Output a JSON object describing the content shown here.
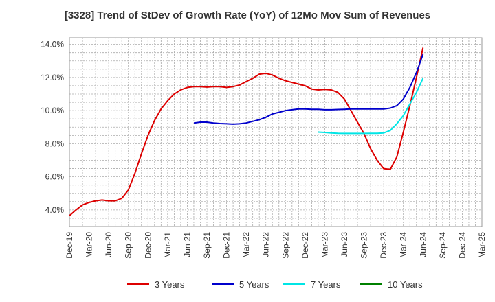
{
  "chart_data": {
    "type": "line",
    "title": "[3328]  Trend of StDev of Growth Rate (YoY) of 12Mo Mov Sum of Revenues",
    "xlabel": "",
    "ylabel": "",
    "x_tick_labels": [
      "Dec-19",
      "Mar-20",
      "Jun-20",
      "Sep-20",
      "Dec-20",
      "Mar-21",
      "Jun-21",
      "Sep-21",
      "Dec-21",
      "Mar-22",
      "Jun-22",
      "Sep-22",
      "Dec-22",
      "Mar-23",
      "Jun-23",
      "Sep-23",
      "Dec-23",
      "Mar-24",
      "Jun-24",
      "Sep-24",
      "Dec-24",
      "Mar-25"
    ],
    "y_tick_labels": [
      "4.0%",
      "6.0%",
      "8.0%",
      "10.0%",
      "12.0%",
      "14.0%"
    ],
    "y_ticks": [
      4,
      6,
      8,
      10,
      12,
      14
    ],
    "ylim": [
      3.0,
      14.4
    ],
    "x_range_months": [
      0,
      63
    ],
    "grid": true,
    "legend_position": "bottom",
    "series": [
      {
        "name": "3 Years",
        "color": "#dd0000",
        "points": [
          [
            0,
            3.65
          ],
          [
            1,
            4.0
          ],
          [
            2,
            4.3
          ],
          [
            3,
            4.45
          ],
          [
            4,
            4.55
          ],
          [
            5,
            4.6
          ],
          [
            6,
            4.55
          ],
          [
            7,
            4.55
          ],
          [
            8,
            4.7
          ],
          [
            9,
            5.2
          ],
          [
            10,
            6.2
          ],
          [
            11,
            7.4
          ],
          [
            12,
            8.5
          ],
          [
            13,
            9.4
          ],
          [
            14,
            10.1
          ],
          [
            15,
            10.6
          ],
          [
            16,
            11.0
          ],
          [
            17,
            11.25
          ],
          [
            18,
            11.4
          ],
          [
            19,
            11.45
          ],
          [
            20,
            11.45
          ],
          [
            21,
            11.42
          ],
          [
            22,
            11.45
          ],
          [
            23,
            11.45
          ],
          [
            24,
            11.4
          ],
          [
            25,
            11.45
          ],
          [
            26,
            11.55
          ],
          [
            27,
            11.75
          ],
          [
            28,
            11.95
          ],
          [
            29,
            12.2
          ],
          [
            30,
            12.25
          ],
          [
            31,
            12.15
          ],
          [
            32,
            11.95
          ],
          [
            33,
            11.8
          ],
          [
            34,
            11.7
          ],
          [
            35,
            11.6
          ],
          [
            36,
            11.5
          ],
          [
            37,
            11.3
          ],
          [
            38,
            11.25
          ],
          [
            39,
            11.28
          ],
          [
            40,
            11.25
          ],
          [
            41,
            11.1
          ],
          [
            42,
            10.7
          ],
          [
            43,
            10.0
          ],
          [
            44,
            9.3
          ],
          [
            45,
            8.6
          ],
          [
            46,
            7.7
          ],
          [
            47,
            7.0
          ],
          [
            48,
            6.5
          ],
          [
            49,
            6.45
          ],
          [
            50,
            7.2
          ],
          [
            51,
            8.7
          ],
          [
            52,
            10.3
          ],
          [
            53,
            12.0
          ],
          [
            54,
            13.8
          ]
        ]
      },
      {
        "name": "5 Years",
        "color": "#0000cc",
        "points": [
          [
            19,
            9.25
          ],
          [
            20,
            9.3
          ],
          [
            21,
            9.3
          ],
          [
            22,
            9.25
          ],
          [
            23,
            9.22
          ],
          [
            24,
            9.2
          ],
          [
            25,
            9.18
          ],
          [
            26,
            9.2
          ],
          [
            27,
            9.25
          ],
          [
            28,
            9.35
          ],
          [
            29,
            9.45
          ],
          [
            30,
            9.6
          ],
          [
            31,
            9.8
          ],
          [
            32,
            9.9
          ],
          [
            33,
            10.0
          ],
          [
            34,
            10.05
          ],
          [
            35,
            10.1
          ],
          [
            36,
            10.1
          ],
          [
            37,
            10.08
          ],
          [
            38,
            10.08
          ],
          [
            39,
            10.05
          ],
          [
            40,
            10.05
          ],
          [
            41,
            10.07
          ],
          [
            42,
            10.08
          ],
          [
            43,
            10.1
          ],
          [
            44,
            10.1
          ],
          [
            45,
            10.1
          ],
          [
            46,
            10.1
          ],
          [
            47,
            10.1
          ],
          [
            48,
            10.1
          ],
          [
            49,
            10.15
          ],
          [
            50,
            10.3
          ],
          [
            51,
            10.7
          ],
          [
            52,
            11.4
          ],
          [
            53,
            12.3
          ],
          [
            54,
            13.4
          ]
        ]
      },
      {
        "name": "7 Years",
        "color": "#00e5e5",
        "points": [
          [
            38,
            8.7
          ],
          [
            39,
            8.68
          ],
          [
            40,
            8.65
          ],
          [
            41,
            8.63
          ],
          [
            42,
            8.62
          ],
          [
            43,
            8.62
          ],
          [
            44,
            8.62
          ],
          [
            45,
            8.62
          ],
          [
            46,
            8.63
          ],
          [
            47,
            8.63
          ],
          [
            48,
            8.65
          ],
          [
            49,
            8.8
          ],
          [
            50,
            9.2
          ],
          [
            51,
            9.7
          ],
          [
            52,
            10.4
          ],
          [
            53,
            11.1
          ],
          [
            54,
            11.95
          ]
        ]
      },
      {
        "name": "10 Years",
        "color": "#008000",
        "points": []
      }
    ]
  }
}
